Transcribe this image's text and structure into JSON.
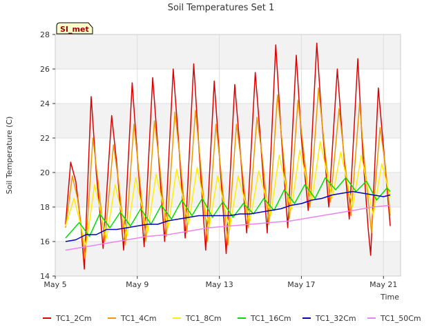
{
  "chart_data": {
    "type": "line",
    "title": "Soil Temperatures Set 1",
    "xlabel": "Time",
    "ylabel": "Soil Temperature (C)",
    "site_badge": "SI_met",
    "x_range": [
      "2024-05-05",
      "2024-05-21T20:00"
    ],
    "ylim": [
      14,
      28
    ],
    "y_ticks": [
      14,
      16,
      18,
      20,
      22,
      24,
      26,
      28
    ],
    "x_ticks": [
      {
        "label": "May 5",
        "date": "2024-05-05"
      },
      {
        "label": "May 9",
        "date": "2024-05-09"
      },
      {
        "label": "May 13",
        "date": "2024-05-13"
      },
      {
        "label": "May 17",
        "date": "2024-05-17"
      },
      {
        "label": "May 21",
        "date": "2024-05-21"
      }
    ],
    "grid": true,
    "legend_position": "bottom",
    "series": [
      {
        "name": "TC1_2Cm",
        "color": "#dd0000",
        "points": [
          [
            "2024-05-05T12:00",
            17.0
          ],
          [
            "2024-05-05T18:00",
            20.6
          ],
          [
            "2024-05-06T00:00",
            19.5
          ],
          [
            "2024-05-06T06:00",
            17.0
          ],
          [
            "2024-05-06T10:00",
            14.4
          ],
          [
            "2024-05-06T18:00",
            24.4
          ],
          [
            "2024-05-07T00:00",
            20.0
          ],
          [
            "2024-05-07T08:00",
            15.6
          ],
          [
            "2024-05-07T18:00",
            23.3
          ],
          [
            "2024-05-08T00:00",
            20.5
          ],
          [
            "2024-05-08T08:00",
            15.5
          ],
          [
            "2024-05-08T18:00",
            25.2
          ],
          [
            "2024-05-09T00:00",
            21.0
          ],
          [
            "2024-05-09T08:00",
            15.7
          ],
          [
            "2024-05-09T18:00",
            25.5
          ],
          [
            "2024-05-10T00:00",
            21.5
          ],
          [
            "2024-05-10T08:00",
            16.0
          ],
          [
            "2024-05-10T18:00",
            26.0
          ],
          [
            "2024-05-11T00:00",
            22.0
          ],
          [
            "2024-05-11T08:00",
            16.2
          ],
          [
            "2024-05-11T18:00",
            26.3
          ],
          [
            "2024-05-12T00:00",
            21.5
          ],
          [
            "2024-05-12T08:00",
            15.5
          ],
          [
            "2024-05-12T18:00",
            25.3
          ],
          [
            "2024-05-13T00:00",
            21.0
          ],
          [
            "2024-05-13T08:00",
            15.3
          ],
          [
            "2024-05-13T18:00",
            25.1
          ],
          [
            "2024-05-14T00:00",
            21.5
          ],
          [
            "2024-05-14T08:00",
            16.5
          ],
          [
            "2024-05-14T18:00",
            25.8
          ],
          [
            "2024-05-15T00:00",
            22.0
          ],
          [
            "2024-05-15T08:00",
            16.5
          ],
          [
            "2024-05-15T18:00",
            27.4
          ],
          [
            "2024-05-16T00:00",
            22.5
          ],
          [
            "2024-05-16T08:00",
            16.8
          ],
          [
            "2024-05-16T18:00",
            26.8
          ],
          [
            "2024-05-17T00:00",
            22.0
          ],
          [
            "2024-05-17T08:00",
            17.8
          ],
          [
            "2024-05-17T18:00",
            27.5
          ],
          [
            "2024-05-18T00:00",
            23.0
          ],
          [
            "2024-05-18T08:00",
            18.0
          ],
          [
            "2024-05-18T18:00",
            26.0
          ],
          [
            "2024-05-19T00:00",
            22.0
          ],
          [
            "2024-05-19T08:00",
            17.3
          ],
          [
            "2024-05-19T18:00",
            26.6
          ],
          [
            "2024-05-20T00:00",
            21.0
          ],
          [
            "2024-05-20T06:00",
            16.8
          ],
          [
            "2024-05-20T09:00",
            15.2
          ],
          [
            "2024-05-20T18:00",
            24.9
          ],
          [
            "2024-05-21T00:00",
            21.5
          ],
          [
            "2024-05-21T06:00",
            18.0
          ],
          [
            "2024-05-21T08:00",
            16.9
          ]
        ]
      },
      {
        "name": "TC1_4Cm",
        "color": "#ee9900",
        "points": [
          [
            "2024-05-05T12:00",
            16.8
          ],
          [
            "2024-05-05T20:00",
            19.8
          ],
          [
            "2024-05-06T02:00",
            18.5
          ],
          [
            "2024-05-06T11:00",
            15.0
          ],
          [
            "2024-05-06T20:00",
            22.0
          ],
          [
            "2024-05-07T02:00",
            19.5
          ],
          [
            "2024-05-07T10:00",
            16.0
          ],
          [
            "2024-05-07T20:00",
            21.6
          ],
          [
            "2024-05-08T02:00",
            19.5
          ],
          [
            "2024-05-08T10:00",
            15.8
          ],
          [
            "2024-05-08T20:00",
            22.8
          ],
          [
            "2024-05-09T02:00",
            20.0
          ],
          [
            "2024-05-09T10:00",
            16.0
          ],
          [
            "2024-05-09T20:00",
            23.0
          ],
          [
            "2024-05-10T02:00",
            20.5
          ],
          [
            "2024-05-10T10:00",
            16.3
          ],
          [
            "2024-05-10T20:00",
            23.5
          ],
          [
            "2024-05-11T02:00",
            20.8
          ],
          [
            "2024-05-11T10:00",
            16.5
          ],
          [
            "2024-05-11T20:00",
            23.6
          ],
          [
            "2024-05-12T02:00",
            20.5
          ],
          [
            "2024-05-12T10:00",
            16.0
          ],
          [
            "2024-05-12T20:00",
            22.8
          ],
          [
            "2024-05-13T02:00",
            20.0
          ],
          [
            "2024-05-13T10:00",
            15.8
          ],
          [
            "2024-05-13T20:00",
            22.8
          ],
          [
            "2024-05-14T02:00",
            20.5
          ],
          [
            "2024-05-14T10:00",
            16.8
          ],
          [
            "2024-05-14T20:00",
            23.2
          ],
          [
            "2024-05-15T02:00",
            21.0
          ],
          [
            "2024-05-15T10:00",
            17.0
          ],
          [
            "2024-05-15T20:00",
            24.5
          ],
          [
            "2024-05-16T02:00",
            21.5
          ],
          [
            "2024-05-16T10:00",
            17.3
          ],
          [
            "2024-05-16T20:00",
            24.2
          ],
          [
            "2024-05-17T02:00",
            21.5
          ],
          [
            "2024-05-17T10:00",
            18.0
          ],
          [
            "2024-05-17T20:00",
            24.9
          ],
          [
            "2024-05-18T02:00",
            22.0
          ],
          [
            "2024-05-18T10:00",
            18.3
          ],
          [
            "2024-05-18T20:00",
            23.7
          ],
          [
            "2024-05-19T02:00",
            21.0
          ],
          [
            "2024-05-19T10:00",
            17.5
          ],
          [
            "2024-05-19T20:00",
            24.0
          ],
          [
            "2024-05-20T02:00",
            20.5
          ],
          [
            "2024-05-20T10:00",
            16.5
          ],
          [
            "2024-05-20T20:00",
            22.6
          ],
          [
            "2024-05-21T02:00",
            20.5
          ],
          [
            "2024-05-21T08:00",
            17.5
          ]
        ]
      },
      {
        "name": "TC1_8Cm",
        "color": "#ffee00",
        "points": [
          [
            "2024-05-05T12:00",
            16.9
          ],
          [
            "2024-05-05T22:00",
            18.5
          ],
          [
            "2024-05-06T12:00",
            15.7
          ],
          [
            "2024-05-06T22:00",
            19.3
          ],
          [
            "2024-05-07T12:00",
            16.2
          ],
          [
            "2024-05-07T22:00",
            19.3
          ],
          [
            "2024-05-08T12:00",
            16.3
          ],
          [
            "2024-05-08T22:00",
            19.7
          ],
          [
            "2024-05-09T12:00",
            16.5
          ],
          [
            "2024-05-09T22:00",
            19.9
          ],
          [
            "2024-05-10T12:00",
            16.8
          ],
          [
            "2024-05-10T22:00",
            20.2
          ],
          [
            "2024-05-11T12:00",
            17.0
          ],
          [
            "2024-05-11T22:00",
            20.3
          ],
          [
            "2024-05-12T12:00",
            16.8
          ],
          [
            "2024-05-12T22:00",
            19.8
          ],
          [
            "2024-05-13T12:00",
            16.7
          ],
          [
            "2024-05-13T22:00",
            19.8
          ],
          [
            "2024-05-14T12:00",
            17.2
          ],
          [
            "2024-05-14T22:00",
            20.1
          ],
          [
            "2024-05-15T12:00",
            17.5
          ],
          [
            "2024-05-15T22:00",
            21.0
          ],
          [
            "2024-05-16T12:00",
            17.8
          ],
          [
            "2024-05-16T22:00",
            21.3
          ],
          [
            "2024-05-17T12:00",
            18.3
          ],
          [
            "2024-05-17T22:00",
            21.8
          ],
          [
            "2024-05-18T12:00",
            18.5
          ],
          [
            "2024-05-18T22:00",
            21.2
          ],
          [
            "2024-05-19T12:00",
            18.0
          ],
          [
            "2024-05-19T22:00",
            21.0
          ],
          [
            "2024-05-20T12:00",
            17.5
          ],
          [
            "2024-05-20T22:00",
            20.5
          ],
          [
            "2024-05-21T08:00",
            18.6
          ]
        ]
      },
      {
        "name": "TC1_16Cm",
        "color": "#00dd00",
        "points": [
          [
            "2024-05-05T12:00",
            16.2
          ],
          [
            "2024-05-06T04:00",
            17.1
          ],
          [
            "2024-05-06T16:00",
            16.3
          ],
          [
            "2024-05-07T04:00",
            17.6
          ],
          [
            "2024-05-07T16:00",
            16.8
          ],
          [
            "2024-05-08T04:00",
            17.7
          ],
          [
            "2024-05-08T16:00",
            16.9
          ],
          [
            "2024-05-09T04:00",
            17.9
          ],
          [
            "2024-05-09T16:00",
            17.0
          ],
          [
            "2024-05-10T04:00",
            18.1
          ],
          [
            "2024-05-10T16:00",
            17.3
          ],
          [
            "2024-05-11T04:00",
            18.4
          ],
          [
            "2024-05-11T16:00",
            17.5
          ],
          [
            "2024-05-12T04:00",
            18.5
          ],
          [
            "2024-05-12T16:00",
            17.4
          ],
          [
            "2024-05-13T04:00",
            18.3
          ],
          [
            "2024-05-13T16:00",
            17.4
          ],
          [
            "2024-05-14T04:00",
            18.2
          ],
          [
            "2024-05-14T16:00",
            17.6
          ],
          [
            "2024-05-15T04:00",
            18.5
          ],
          [
            "2024-05-15T16:00",
            17.8
          ],
          [
            "2024-05-16T04:00",
            19.0
          ],
          [
            "2024-05-16T16:00",
            18.2
          ],
          [
            "2024-05-17T04:00",
            19.3
          ],
          [
            "2024-05-17T16:00",
            18.5
          ],
          [
            "2024-05-18T04:00",
            19.7
          ],
          [
            "2024-05-18T16:00",
            19.0
          ],
          [
            "2024-05-19T04:00",
            19.7
          ],
          [
            "2024-05-19T16:00",
            18.9
          ],
          [
            "2024-05-20T04:00",
            19.5
          ],
          [
            "2024-05-20T16:00",
            18.4
          ],
          [
            "2024-05-21T04:00",
            19.1
          ],
          [
            "2024-05-21T08:00",
            18.9
          ]
        ]
      },
      {
        "name": "TC1_32Cm",
        "color": "#0000bb",
        "points": [
          [
            "2024-05-05T12:00",
            16.0
          ],
          [
            "2024-05-06T00:00",
            16.1
          ],
          [
            "2024-05-06T12:00",
            16.4
          ],
          [
            "2024-05-07T00:00",
            16.4
          ],
          [
            "2024-05-07T12:00",
            16.7
          ],
          [
            "2024-05-08T00:00",
            16.7
          ],
          [
            "2024-05-08T12:00",
            16.8
          ],
          [
            "2024-05-09T00:00",
            16.9
          ],
          [
            "2024-05-09T12:00",
            17.0
          ],
          [
            "2024-05-10T00:00",
            17.0
          ],
          [
            "2024-05-10T12:00",
            17.2
          ],
          [
            "2024-05-11T00:00",
            17.3
          ],
          [
            "2024-05-11T12:00",
            17.4
          ],
          [
            "2024-05-12T00:00",
            17.5
          ],
          [
            "2024-05-12T12:00",
            17.5
          ],
          [
            "2024-05-13T00:00",
            17.5
          ],
          [
            "2024-05-13T12:00",
            17.5
          ],
          [
            "2024-05-14T00:00",
            17.6
          ],
          [
            "2024-05-14T12:00",
            17.6
          ],
          [
            "2024-05-15T00:00",
            17.7
          ],
          [
            "2024-05-15T12:00",
            17.8
          ],
          [
            "2024-05-16T00:00",
            17.9
          ],
          [
            "2024-05-16T12:00",
            18.1
          ],
          [
            "2024-05-17T00:00",
            18.2
          ],
          [
            "2024-05-17T12:00",
            18.4
          ],
          [
            "2024-05-18T00:00",
            18.5
          ],
          [
            "2024-05-18T12:00",
            18.7
          ],
          [
            "2024-05-19T00:00",
            18.8
          ],
          [
            "2024-05-19T12:00",
            18.9
          ],
          [
            "2024-05-20T00:00",
            18.8
          ],
          [
            "2024-05-20T12:00",
            18.7
          ],
          [
            "2024-05-21T00:00",
            18.6
          ],
          [
            "2024-05-21T08:00",
            18.7
          ]
        ]
      },
      {
        "name": "TC1_50Cm",
        "color": "#ee82ee",
        "points": [
          [
            "2024-05-05T12:00",
            15.5
          ],
          [
            "2024-05-06T12:00",
            15.7
          ],
          [
            "2024-05-07T12:00",
            15.9
          ],
          [
            "2024-05-08T12:00",
            16.1
          ],
          [
            "2024-05-09T12:00",
            16.3
          ],
          [
            "2024-05-10T12:00",
            16.4
          ],
          [
            "2024-05-11T12:00",
            16.6
          ],
          [
            "2024-05-12T12:00",
            16.8
          ],
          [
            "2024-05-13T12:00",
            16.9
          ],
          [
            "2024-05-14T12:00",
            17.0
          ],
          [
            "2024-05-15T12:00",
            17.1
          ],
          [
            "2024-05-16T12:00",
            17.2
          ],
          [
            "2024-05-17T12:00",
            17.4
          ],
          [
            "2024-05-18T12:00",
            17.6
          ],
          [
            "2024-05-19T12:00",
            17.8
          ],
          [
            "2024-05-20T12:00",
            18.0
          ],
          [
            "2024-05-21T08:00",
            18.1
          ]
        ]
      }
    ]
  }
}
